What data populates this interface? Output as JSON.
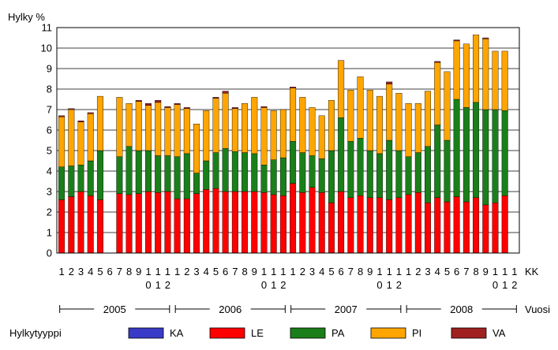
{
  "chart_data": {
    "type": "bar",
    "stacked": true,
    "title": "",
    "ylabel": "Hylky %",
    "xlabel": "KK",
    "year_axis_label": "Vuosi",
    "legend_title": "Hylkytyyppi",
    "legend_position": "bottom",
    "grid": true,
    "ylim": [
      0,
      11
    ],
    "yticks": [
      "0",
      "1",
      "2",
      "3",
      "4",
      "5",
      "6",
      "7",
      "8",
      "9",
      "10",
      "11"
    ],
    "month_labels": [
      "1",
      "2",
      "3",
      "4",
      "5",
      "6",
      "7",
      "8",
      "9",
      "1\n0",
      "1\n1",
      "1\n2"
    ],
    "years": [
      "2005",
      "2006",
      "2007",
      "2008"
    ],
    "categories": [
      "2005-01",
      "2005-02",
      "2005-03",
      "2005-04",
      "2005-05",
      "2005-06",
      "2005-07",
      "2005-08",
      "2005-09",
      "2005-10",
      "2005-11",
      "2005-12",
      "2006-01",
      "2006-02",
      "2006-03",
      "2006-04",
      "2006-05",
      "2006-06",
      "2006-07",
      "2006-08",
      "2006-09",
      "2006-10",
      "2006-11",
      "2006-12",
      "2007-01",
      "2007-02",
      "2007-03",
      "2007-04",
      "2007-05",
      "2007-06",
      "2007-07",
      "2007-08",
      "2007-09",
      "2007-10",
      "2007-11",
      "2007-12",
      "2008-01",
      "2008-02",
      "2008-03",
      "2008-04",
      "2008-05",
      "2008-06",
      "2008-07",
      "2008-08",
      "2008-09",
      "2008-10",
      "2008-11",
      "2008-12"
    ],
    "series": [
      {
        "name": "KA",
        "color": "#3a3ac8",
        "values": [
          0,
          0,
          0,
          0,
          0,
          0,
          0,
          0,
          0,
          0,
          0,
          0,
          0,
          0,
          0,
          0,
          0,
          0,
          0,
          0,
          0,
          0,
          0,
          0,
          0,
          0,
          0,
          0,
          0,
          0,
          0,
          0,
          0,
          0,
          0,
          0,
          0,
          0,
          0,
          0,
          0,
          0,
          0,
          0,
          0,
          0,
          0,
          0
        ]
      },
      {
        "name": "LE",
        "color": "#ff0000",
        "values": [
          2.6,
          2.75,
          3.0,
          2.8,
          2.6,
          0,
          2.9,
          2.85,
          2.9,
          3.0,
          2.95,
          3.0,
          2.65,
          2.65,
          2.9,
          3.1,
          3.15,
          3.0,
          3.0,
          3.0,
          3.0,
          2.95,
          2.85,
          2.8,
          3.4,
          2.95,
          3.2,
          2.95,
          2.45,
          3.0,
          2.7,
          2.8,
          2.7,
          2.7,
          2.6,
          2.7,
          2.85,
          2.95,
          2.45,
          2.7,
          2.5,
          2.75,
          2.5,
          2.7,
          2.35,
          2.45,
          2.8,
          0
        ]
      },
      {
        "name": "PA",
        "color": "#1a7f1a",
        "values": [
          1.6,
          1.5,
          1.3,
          1.7,
          2.4,
          0,
          1.8,
          2.35,
          2.1,
          2.0,
          1.8,
          1.75,
          2.05,
          2.2,
          1.0,
          1.4,
          1.75,
          2.1,
          1.95,
          1.9,
          1.85,
          1.35,
          1.7,
          1.85,
          2.05,
          1.95,
          1.55,
          1.65,
          2.55,
          3.6,
          2.75,
          2.8,
          2.3,
          2.15,
          2.9,
          2.3,
          1.85,
          1.95,
          2.75,
          3.55,
          3.0,
          4.75,
          4.6,
          4.65,
          4.65,
          4.55,
          4.15,
          0
        ]
      },
      {
        "name": "PI",
        "color": "#ffa500",
        "values": [
          2.45,
          2.75,
          2.1,
          2.3,
          2.65,
          0,
          2.9,
          2.1,
          2.4,
          2.2,
          2.6,
          2.35,
          2.55,
          2.2,
          2.4,
          2.45,
          2.65,
          2.7,
          2.1,
          2.4,
          2.75,
          2.8,
          2.4,
          2.35,
          2.6,
          2.7,
          2.35,
          2.1,
          2.45,
          2.8,
          2.5,
          3.0,
          2.95,
          2.8,
          2.75,
          2.8,
          2.6,
          2.4,
          2.7,
          3.05,
          3.35,
          2.85,
          3.1,
          3.3,
          3.45,
          2.85,
          2.9,
          0
        ]
      },
      {
        "name": "VA",
        "color": "#a02020",
        "values": [
          0.05,
          0.05,
          0.05,
          0.05,
          0,
          0,
          0,
          0,
          0.05,
          0.1,
          0.1,
          0.05,
          0.05,
          0.05,
          0,
          0,
          0.05,
          0.1,
          0.05,
          0,
          0,
          0.05,
          0,
          0,
          0.05,
          0,
          0,
          0,
          0,
          0,
          0,
          0,
          0,
          0,
          0.1,
          0,
          0,
          0,
          0,
          0.05,
          0,
          0.05,
          0,
          0,
          0.05,
          0,
          0,
          0
        ]
      }
    ],
    "month_axis": {
      "ticks_row1": [
        "1",
        "2",
        "3",
        "4",
        "5",
        "6",
        "7",
        "8",
        "9",
        "1",
        "1",
        "1",
        "1",
        "2",
        "3",
        "4",
        "5",
        "6",
        "7",
        "8",
        "9",
        "1",
        "1",
        "1",
        "1",
        "2",
        "3",
        "4",
        "5",
        "6",
        "7",
        "8",
        "9",
        "1",
        "1",
        "1",
        "1",
        "2",
        "3",
        "4",
        "5",
        "6",
        "7",
        "8",
        "9",
        "1",
        "1",
        "1"
      ],
      "ticks_row2": [
        "",
        "",
        "",
        "",
        "",
        "",
        "",
        "",
        "",
        "0",
        "1",
        "2",
        "",
        "",
        "",
        "",
        "",
        "",
        "",
        "",
        "",
        "0",
        "1",
        "2",
        "",
        "",
        "",
        "",
        "",
        "",
        "",
        "",
        "",
        "0",
        "1",
        "2",
        "",
        "",
        "",
        "",
        "",
        "",
        "",
        "",
        "",
        "0",
        "1",
        "2"
      ]
    }
  }
}
